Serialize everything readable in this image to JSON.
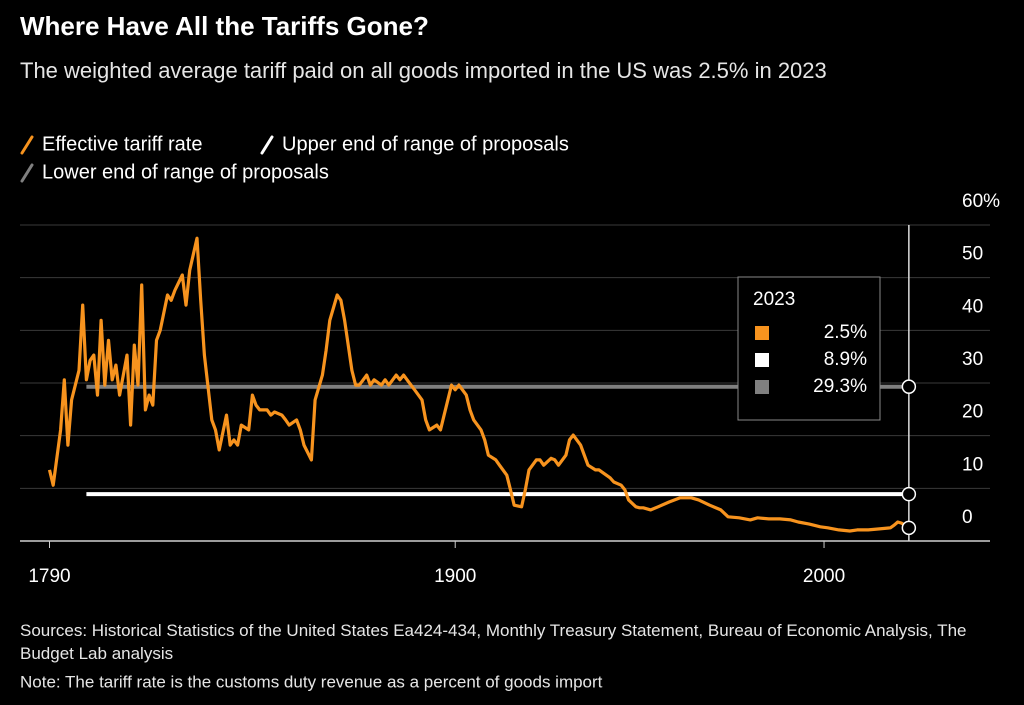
{
  "chart_data": {
    "type": "line",
    "title": "Where Have All the Tariffs Gone?",
    "subtitle": "The weighted average tariff paid on all goods imported in the US was 2.5% in 2023",
    "sources": "Sources: Historical Statistics of the United States Ea424-434, Monthly Treasury Statement, Bureau of Economic Analysis, The Budget Lab analysis",
    "note": "Note: The tariff rate is the customs duty revenue as a percent of goods import",
    "xlim": [
      1782,
      2045
    ],
    "xticks": [
      1790,
      1900,
      2000
    ],
    "ylim": [
      0,
      60
    ],
    "yticks": [
      0,
      10,
      20,
      30,
      40,
      50,
      {
        "value": 60,
        "label": "60%"
      }
    ],
    "grid": true,
    "marker_year": 2023,
    "series": [
      {
        "name": "Effective tariff rate",
        "color": "#f7931e",
        "x": [
          1790,
          1791,
          1793,
          1794,
          1795,
          1796,
          1798,
          1799,
          1800,
          1801,
          1802,
          1803,
          1804,
          1805,
          1806,
          1807,
          1808,
          1809,
          1811,
          1812,
          1813,
          1814,
          1815,
          1816,
          1817,
          1818,
          1819,
          1820,
          1822,
          1823,
          1824,
          1826,
          1827,
          1828,
          1830,
          1831,
          1832,
          1834,
          1835,
          1836,
          1838,
          1839,
          1840,
          1841,
          1842,
          1844,
          1845,
          1846,
          1847,
          1849,
          1850,
          1851,
          1853,
          1854,
          1855,
          1857,
          1858,
          1859,
          1861,
          1862,
          1864,
          1865,
          1866,
          1868,
          1869,
          1870,
          1872,
          1873,
          1874,
          1876,
          1877,
          1878,
          1880,
          1881,
          1882,
          1884,
          1885,
          1886,
          1888,
          1889,
          1891,
          1892,
          1893,
          1895,
          1896,
          1897,
          1899,
          1900,
          1901,
          1903,
          1904,
          1905,
          1907,
          1908,
          1909,
          1911,
          1912,
          1914,
          1915,
          1916,
          1918,
          1919,
          1920,
          1922,
          1923,
          1924,
          1926,
          1927,
          1928,
          1930,
          1931,
          1932,
          1934,
          1935,
          1936,
          1938,
          1939,
          1941,
          1942,
          1943,
          1945,
          1946,
          1947,
          1949,
          1950,
          1951,
          1953,
          1955,
          1958,
          1961,
          1964,
          1966,
          1969,
          1972,
          1974,
          1977,
          1980,
          1982,
          1985,
          1988,
          1991,
          1993,
          1996,
          1999,
          2001,
          2004,
          2007,
          2009,
          2012,
          2015,
          2018,
          2019,
          2020,
          2021,
          2023
        ],
        "values": [
          13.5,
          10.6,
          21.1,
          30.6,
          18.2,
          26.8,
          32.4,
          44.8,
          30.6,
          34.3,
          35.3,
          27.7,
          41.9,
          29.6,
          38.1,
          30.6,
          33.4,
          27.7,
          35.3,
          22.0,
          37.2,
          29.6,
          48.6,
          24.9,
          27.7,
          25.8,
          38.1,
          40.0,
          46.7,
          45.7,
          47.6,
          50.5,
          44.8,
          51.4,
          57.5,
          45.7,
          35.3,
          23.0,
          21.1,
          17.3,
          23.9,
          18.2,
          19.2,
          18.2,
          22.0,
          21.1,
          27.7,
          25.8,
          24.9,
          24.9,
          23.9,
          24.5,
          23.9,
          23.0,
          22.0,
          23.0,
          21.1,
          18.2,
          15.4,
          26.8,
          31.5,
          36.2,
          41.9,
          46.7,
          45.7,
          41.9,
          32.4,
          29.6,
          29.6,
          31.5,
          29.6,
          30.6,
          29.6,
          30.6,
          29.6,
          31.5,
          30.6,
          31.5,
          29.6,
          28.7,
          26.8,
          23.0,
          21.1,
          22.0,
          21.1,
          23.9,
          29.6,
          28.7,
          29.6,
          27.7,
          24.9,
          23.0,
          21.1,
          19.2,
          16.3,
          15.4,
          14.4,
          12.5,
          9.7,
          6.8,
          6.5,
          9.7,
          13.5,
          15.4,
          15.4,
          14.4,
          15.7,
          15.4,
          14.4,
          16.3,
          19.2,
          20.1,
          18.2,
          16.3,
          14.4,
          13.5,
          13.5,
          12.5,
          12.0,
          11.2,
          10.6,
          9.7,
          7.8,
          6.5,
          6.3,
          6.3,
          5.9,
          6.5,
          7.4,
          8.2,
          8.2,
          7.8,
          6.8,
          5.9,
          4.6,
          4.4,
          4.0,
          4.4,
          4.2,
          4.2,
          4.0,
          3.6,
          3.2,
          2.7,
          2.5,
          2.1,
          1.9,
          2.1,
          2.1,
          2.3,
          2.5,
          3.0,
          3.6,
          3.4,
          2.5
        ]
      },
      {
        "name": "Upper end of range of proposals",
        "color": "#ffffff",
        "x": [
          1800,
          2023
        ],
        "values": [
          8.9,
          8.9
        ]
      },
      {
        "name": "Lower end of range of proposals",
        "color": "#808080",
        "x": [
          1800,
          2023
        ],
        "values": [
          29.3,
          29.3
        ]
      }
    ],
    "legend_box": {
      "title": "2023",
      "values": [
        2.5,
        8.9,
        29.3
      ],
      "value_labels": [
        "2.5%",
        "8.9%",
        "29.3%"
      ]
    }
  }
}
